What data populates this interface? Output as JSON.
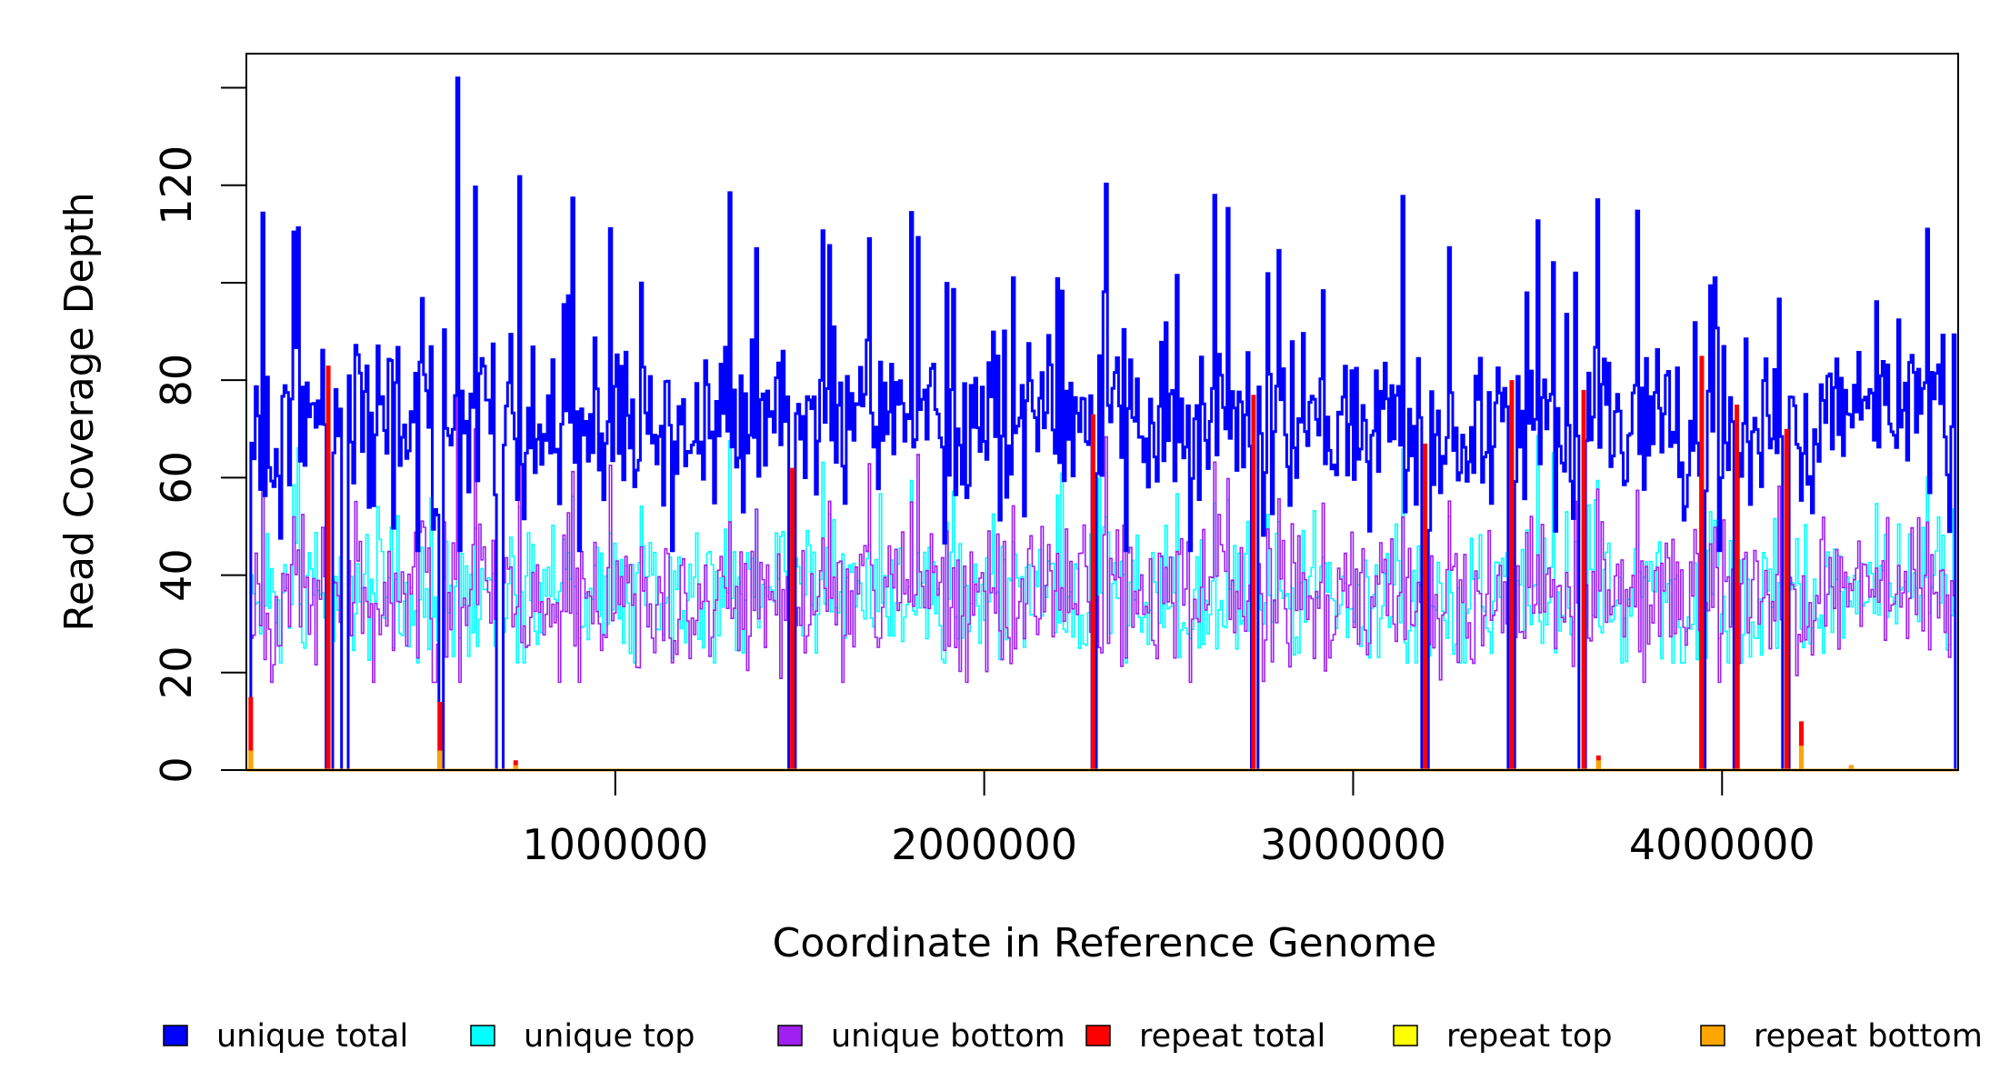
{
  "chart_data": {
    "type": "line",
    "title": "",
    "xlabel": "Coordinate in Reference Genome",
    "ylabel": "Read Coverage Depth",
    "xlim": [
      0,
      4640000
    ],
    "ylim": [
      0,
      147
    ],
    "x_ticks": [
      1000000,
      2000000,
      3000000,
      4000000
    ],
    "x_tick_labels": [
      "1000000",
      "2000000",
      "3000000",
      "4000000"
    ],
    "y_ticks": [
      0,
      20,
      40,
      60,
      80,
      100,
      120,
      140
    ],
    "y_tick_labels": [
      "0",
      "20",
      "40",
      "60",
      "80",
      "",
      "120",
      ""
    ],
    "grid": false,
    "legend_position": "bottom",
    "series": [
      {
        "name": "unique total",
        "color": "#0000ff"
      },
      {
        "name": "unique top",
        "color": "#00ffff"
      },
      {
        "name": "unique bottom",
        "color": "#a020f0"
      },
      {
        "name": "repeat total",
        "color": "#ff0000"
      },
      {
        "name": "repeat top",
        "color": "#ffff00"
      },
      {
        "name": "repeat bottom",
        "color": "#ffa500"
      }
    ],
    "coverage_profile": {
      "x_start": 0,
      "x_end": 4640000,
      "window": 6000,
      "unique_total_mean": 72,
      "unique_total_peak": 142,
      "unique_top_mean": 36,
      "unique_bottom_mean": 36
    },
    "coverage_gaps": [
      3000,
      220000,
      265000,
      525000,
      685000,
      1475000,
      2295000,
      2730000,
      3190000,
      3425000,
      3620000,
      3945000,
      4035000,
      4170000,
      4640000
    ],
    "repeat_spikes": [
      {
        "x": 12000,
        "total": 15,
        "bottom": 4
      },
      {
        "x": 222000,
        "total": 83,
        "bottom": 0
      },
      {
        "x": 525000,
        "total": 14,
        "bottom": 4
      },
      {
        "x": 730000,
        "total": 2,
        "bottom": 1
      },
      {
        "x": 1480000,
        "total": 62,
        "bottom": 0
      },
      {
        "x": 2295000,
        "total": 73,
        "bottom": 0
      },
      {
        "x": 2730000,
        "total": 77,
        "bottom": 0
      },
      {
        "x": 3195000,
        "total": 67,
        "bottom": 0
      },
      {
        "x": 3430000,
        "total": 80,
        "bottom": 0
      },
      {
        "x": 3625000,
        "total": 78,
        "bottom": 0
      },
      {
        "x": 3665000,
        "total": 3,
        "bottom": 2
      },
      {
        "x": 3945000,
        "total": 85,
        "bottom": 0
      },
      {
        "x": 4040000,
        "total": 75,
        "bottom": 0
      },
      {
        "x": 4175000,
        "total": 70,
        "bottom": 0
      },
      {
        "x": 4215000,
        "total": 10,
        "bottom": 5
      },
      {
        "x": 4350000,
        "total": 1,
        "bottom": 1
      }
    ]
  }
}
